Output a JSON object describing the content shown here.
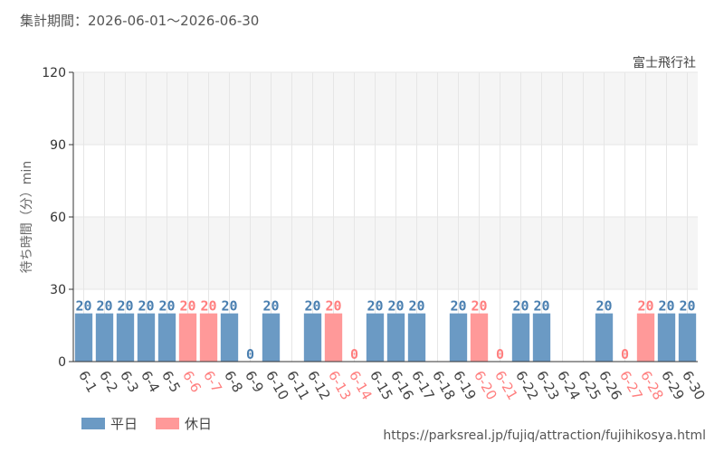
{
  "header": {
    "period": "集計期間：2026-06-01～2026-06-30"
  },
  "footer": {
    "source_url": "https://parksreal.jp/fujiq/attraction/fujihikosya.html"
  },
  "colors": {
    "weekday": "#6b9ac4",
    "holiday": "#ff9999",
    "weekday_label": "#4a7fb0",
    "holiday_label": "#ff7f7f",
    "band": "#f5f5f5"
  },
  "chart_data": {
    "type": "bar",
    "subtitle": "富士飛行社",
    "ylabel": "待ち時間（分）min",
    "xlabel": "",
    "ylim": [
      0,
      120
    ],
    "yticks": [
      0,
      30,
      60,
      90,
      120
    ],
    "grid": true,
    "legend_position": "bottom-left",
    "legend": [
      {
        "name": "平日",
        "color_key": "weekday"
      },
      {
        "name": "休日",
        "color_key": "holiday"
      }
    ],
    "categories": [
      "6-1",
      "6-2",
      "6-3",
      "6-4",
      "6-5",
      "6-6",
      "6-7",
      "6-8",
      "6-9",
      "6-10",
      "6-11",
      "6-12",
      "6-13",
      "6-14",
      "6-15",
      "6-16",
      "6-17",
      "6-18",
      "6-19",
      "6-20",
      "6-21",
      "6-22",
      "6-23",
      "6-24",
      "6-25",
      "6-26",
      "6-27",
      "6-28",
      "6-29",
      "6-30"
    ],
    "values": [
      20,
      20,
      20,
      20,
      20,
      20,
      20,
      20,
      0,
      20,
      null,
      20,
      20,
      0,
      20,
      20,
      20,
      null,
      20,
      20,
      0,
      20,
      20,
      null,
      null,
      20,
      0,
      20,
      20,
      20
    ],
    "holiday": [
      false,
      false,
      false,
      false,
      false,
      true,
      true,
      false,
      false,
      false,
      false,
      false,
      true,
      true,
      false,
      false,
      false,
      false,
      false,
      true,
      true,
      false,
      false,
      false,
      false,
      false,
      true,
      true,
      false,
      false
    ]
  }
}
